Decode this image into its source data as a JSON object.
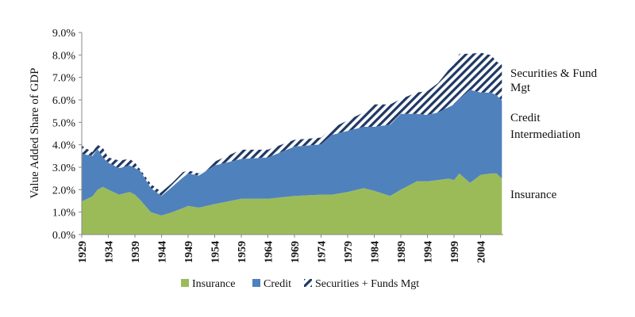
{
  "chart_data": {
    "type": "area",
    "stacked": true,
    "ylabel": "Value Added Share of GDP",
    "xlabel": "",
    "ylim": [
      0,
      9
    ],
    "yticks": [
      "0.0%",
      "1.0%",
      "2.0%",
      "3.0%",
      "4.0%",
      "5.0%",
      "6.0%",
      "7.0%",
      "8.0%",
      "9.0%"
    ],
    "xticks": [
      "1929",
      "1934",
      "1939",
      "1944",
      "1949",
      "1954",
      "1959",
      "1964",
      "1969",
      "1974",
      "1979",
      "1984",
      "1989",
      "1994",
      "1999",
      "2004"
    ],
    "x": [
      1929,
      1931,
      1932,
      1933,
      1934,
      1936,
      1938,
      1939,
      1940,
      1942,
      1944,
      1946,
      1948,
      1949,
      1951,
      1954,
      1959,
      1964,
      1969,
      1974,
      1976,
      1979,
      1982,
      1984,
      1987,
      1989,
      1992,
      1994,
      1996,
      1998,
      1999,
      2000,
      2002,
      2004,
      2006,
      2007,
      2008
    ],
    "series": [
      {
        "name": "Insurance",
        "color": "#9bbb59",
        "values": [
          1.48,
          1.7,
          2.0,
          2.13,
          2.0,
          1.78,
          1.9,
          1.78,
          1.54,
          1.0,
          0.85,
          1.0,
          1.18,
          1.28,
          1.2,
          1.36,
          1.6,
          1.6,
          1.72,
          1.78,
          1.78,
          1.9,
          2.07,
          1.95,
          1.72,
          2.0,
          2.37,
          2.37,
          2.43,
          2.49,
          2.43,
          2.72,
          2.3,
          2.66,
          2.72,
          2.72,
          2.49
        ]
      },
      {
        "name": "Credit",
        "color": "#4f81bd",
        "values": [
          2.12,
          1.8,
          1.8,
          1.3,
          1.2,
          1.18,
          1.18,
          1.18,
          1.3,
          1.07,
          0.87,
          1.13,
          1.36,
          1.44,
          1.43,
          1.72,
          1.77,
          1.83,
          2.2,
          2.24,
          2.66,
          2.72,
          2.73,
          2.85,
          3.18,
          3.38,
          3.01,
          2.96,
          3.01,
          3.19,
          3.37,
          3.32,
          4.15,
          3.67,
          3.61,
          3.48,
          3.49
        ]
      },
      {
        "name": "Securities + Funds Mgt",
        "color": "#1f3864",
        "pattern": "diagonal-hatch",
        "values": [
          0.36,
          0.17,
          0.2,
          0.42,
          0.23,
          0.34,
          0.29,
          0.24,
          0.06,
          0.18,
          0.18,
          0.17,
          0.24,
          0.14,
          0.09,
          0.17,
          0.41,
          0.35,
          0.3,
          0.3,
          0.29,
          0.47,
          0.64,
          1.0,
          0.9,
          0.66,
          0.95,
          1.06,
          1.31,
          1.66,
          1.77,
          2.01,
          1.6,
          1.77,
          1.66,
          1.5,
          1.59
        ]
      }
    ],
    "legend": {
      "placement": "bottom",
      "entries": [
        "Insurance",
        "Credit",
        "Securities + Funds Mgt"
      ]
    },
    "annotations": [
      {
        "lines": [
          "Securities & Fund",
          "Mgt"
        ]
      },
      {
        "lines": [
          "Credit",
          "Intermediation"
        ]
      },
      {
        "lines": [
          "Insurance"
        ]
      }
    ],
    "grid": false
  }
}
